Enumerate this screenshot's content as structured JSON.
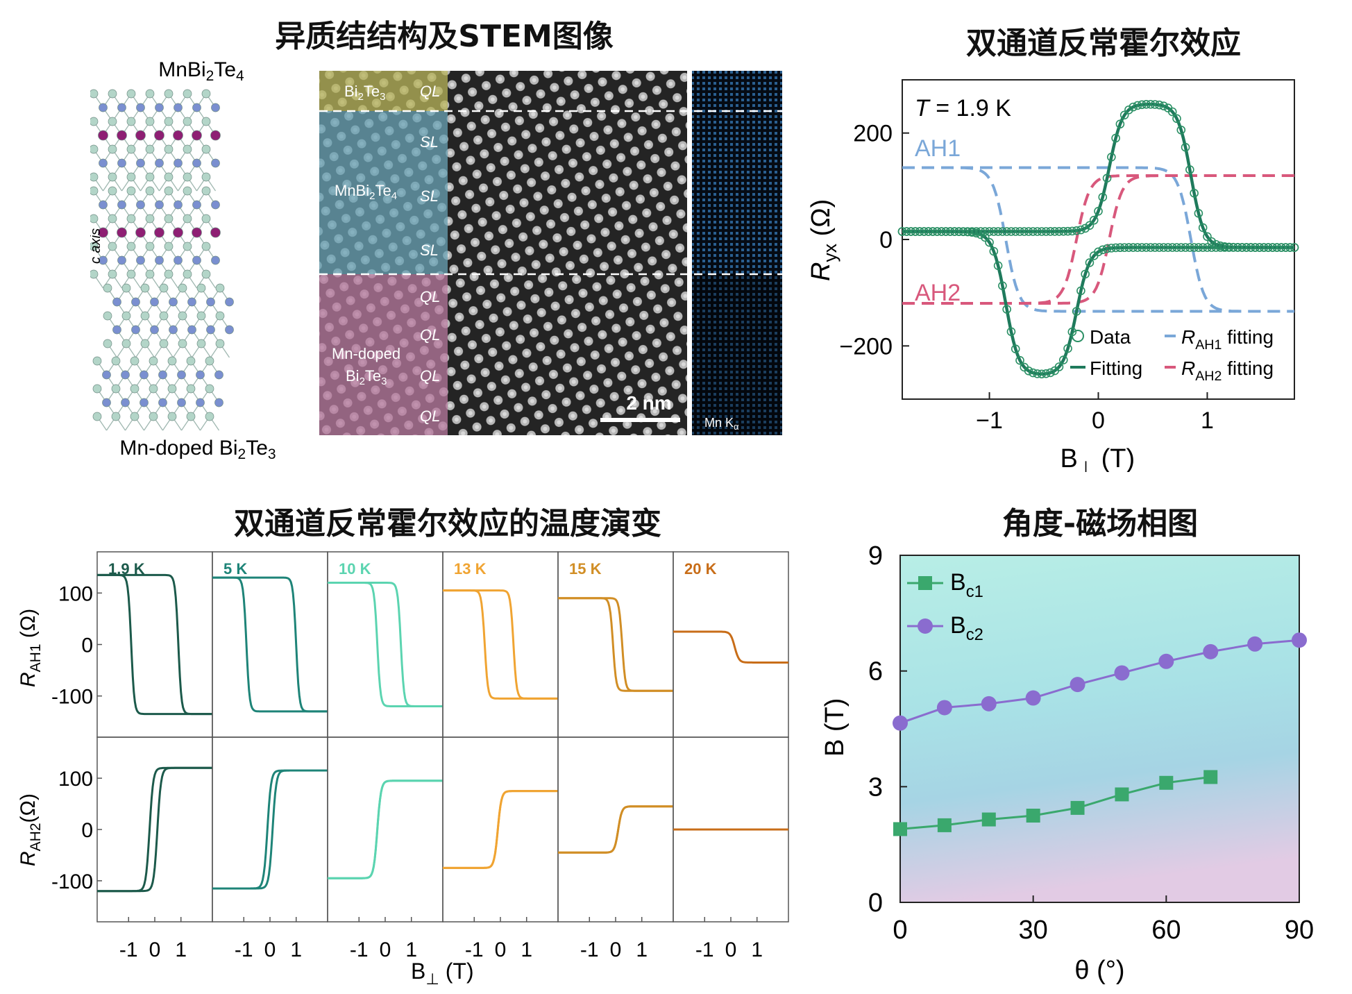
{
  "panels": {
    "stem": {
      "title": "异质结结构及STEM图像",
      "crystal": {
        "top_formula_main": "MnBi",
        "top_formula_sub": "2",
        "top_formula_tail": "Te",
        "top_formula_sub2": "4",
        "bottom_formula_main": "Mn-doped Bi",
        "bottom_formula_sub": "2",
        "bottom_formula_tail": "Te",
        "bottom_formula_sub2": "3",
        "axis_label": "c axis",
        "legend": [
          {
            "label": "Mn",
            "color": "#8e1f73"
          },
          {
            "label": "Bi",
            "color": "#7a8fd0"
          },
          {
            "label": "Te",
            "color": "#b3d5c8"
          }
        ]
      },
      "image": {
        "layers": [
          {
            "name": "Bi2Te3",
            "main": "Bi",
            "sub": "2",
            "tail": "Te",
            "sub2": "3",
            "color": "#b8b45a"
          },
          {
            "name": "MnBi2Te4",
            "main": "MnBi",
            "sub": "2",
            "tail": "Te",
            "sub2": "4",
            "color": "#6aa3b5"
          },
          {
            "name": "Mn-doped Bi2Te3",
            "main": "Mn-doped",
            "line2": "Bi",
            "sub": "2",
            "tail": "Te",
            "sub2": "3",
            "color": "#b8799f"
          }
        ],
        "tags": [
          "QL",
          "SL",
          "SL",
          "SL",
          "QL",
          "QL",
          "QL",
          "QL"
        ],
        "scalebar": "2 nm",
        "eds_label_main": "Mn K",
        "eds_label_sub": "α"
      }
    },
    "ahe": {
      "title": "双通道反常霍尔效应",
      "annotation_T": "T",
      "annotation_rest": " = 1.9 K",
      "label_ah1": "AH1",
      "label_ah2": "AH2",
      "ylabel_main": "R",
      "ylabel_sub": "yx",
      "ylabel_unit": " (Ω)",
      "xlabel_main": "B",
      "xlabel_sub": "⊥",
      "xlabel_unit": " (T)",
      "legend": {
        "data": "Data",
        "fitting": "Fitting",
        "ah1_main": "R",
        "ah1_sub": "AH1",
        "ah1_tail": " fitting",
        "ah2_main": "R",
        "ah2_sub": "AH2",
        "ah2_tail": " fitting"
      }
    },
    "temp": {
      "title": "双通道反常霍尔效应的温度演变",
      "ylabel_top_main": "R",
      "ylabel_top_sub": "AH1",
      "ylabel_top_unit": " (Ω)",
      "ylabel_bot_main": "R",
      "ylabel_bot_sub": "AH2",
      "ylabel_bot_unit": "(Ω)",
      "xlabel_main": "B",
      "xlabel_sub": "⊥",
      "xlabel_unit": " (T)"
    },
    "phase": {
      "title": "角度-磁场相图",
      "ylabel": "B (T)",
      "xlabel": "θ (°)",
      "legend_bc1_main": "B",
      "legend_bc1_sub": "c1",
      "legend_bc2_main": "B",
      "legend_bc2_sub": "c2"
    }
  },
  "chart_data": [
    {
      "type": "line",
      "id": "ahe",
      "annotation": "T = 1.9 K",
      "xlabel": "B⊥ (T)",
      "ylabel": "Ryx (Ω)",
      "xlim": [
        -1.8,
        1.8
      ],
      "ylim": [
        -300,
        300
      ],
      "xticks": [
        -1,
        0,
        1
      ],
      "xtick_labels": [
        "−1",
        "0",
        "1"
      ],
      "yticks": [
        -200,
        0,
        200
      ],
      "ytick_labels": [
        "−200",
        "0",
        "200"
      ],
      "series": [
        {
          "name": "AH1",
          "style": "dashed",
          "color": "#7aa7d8",
          "amplitude": 135,
          "coercive": [
            -0.85,
            0.85
          ],
          "width": 0.06
        },
        {
          "name": "AH2",
          "style": "dashed",
          "color": "#d8587c",
          "amplitude": 120,
          "coercive": [
            -0.2,
            0.1
          ],
          "width": 0.06
        },
        {
          "name": "Fitting",
          "style": "solid",
          "color": "#1f7a5c"
        },
        {
          "name": "Data",
          "style": "markers",
          "color": "#2a8f64"
        }
      ]
    },
    {
      "type": "line",
      "id": "temp",
      "temperatures": [
        "1.9 K",
        "5 K",
        "10 K",
        "13 K",
        "15 K",
        "20 K"
      ],
      "colors": [
        "#1c5a4b",
        "#1e8478",
        "#5bd4b0",
        "#f0a432",
        "#d18e25",
        "#c86d18"
      ],
      "xlim": [
        -2.2,
        2.2
      ],
      "xticks": [
        -1,
        0,
        1
      ],
      "xtick_labels": [
        "-1",
        "0",
        "1"
      ],
      "ylim": [
        -180,
        180
      ],
      "yticks": [
        -100,
        0,
        100
      ],
      "ytick_labels": [
        "-100",
        "0",
        "100"
      ],
      "AH1": {
        "levels": [
          135,
          130,
          120,
          105,
          90,
          25
        ],
        "low_offset": [
          0,
          0,
          0,
          0,
          0,
          25
        ],
        "coercive_left": [
          -0.9,
          -0.9,
          -0.3,
          -0.6,
          -0.1,
          0.0
        ],
        "coercive_right": [
          0.9,
          1.0,
          0.6,
          0.5,
          0.25,
          0.0
        ]
      },
      "AH2": {
        "levels": [
          120,
          115,
          95,
          75,
          45,
          0
        ],
        "coercive_left": [
          -0.2,
          -0.1,
          -0.3,
          -0.1,
          0.1,
          0.0
        ],
        "coercive_right": [
          0.1,
          0.1,
          -0.3,
          -0.1,
          0.1,
          0.0
        ]
      }
    },
    {
      "type": "line",
      "id": "phase",
      "xlabel": "θ (°)",
      "ylabel": "B (T)",
      "xlim": [
        0,
        90
      ],
      "ylim": [
        0,
        9
      ],
      "xticks": [
        0,
        30,
        60,
        90
      ],
      "yticks": [
        0,
        3,
        6,
        9
      ],
      "series": [
        {
          "name": "Bc1",
          "marker": "square",
          "color": "#3aa86d",
          "x": [
            0,
            10,
            20,
            30,
            40,
            50,
            60,
            70
          ],
          "y": [
            1.9,
            2.0,
            2.15,
            2.25,
            2.45,
            2.8,
            3.1,
            3.25
          ]
        },
        {
          "name": "Bc2",
          "marker": "circle",
          "color": "#8a6ccf",
          "x": [
            0,
            10,
            20,
            30,
            40,
            50,
            60,
            70,
            80,
            90
          ],
          "y": [
            4.65,
            5.05,
            5.15,
            5.3,
            5.65,
            5.95,
            6.25,
            6.5,
            6.7,
            6.8
          ]
        }
      ]
    }
  ]
}
